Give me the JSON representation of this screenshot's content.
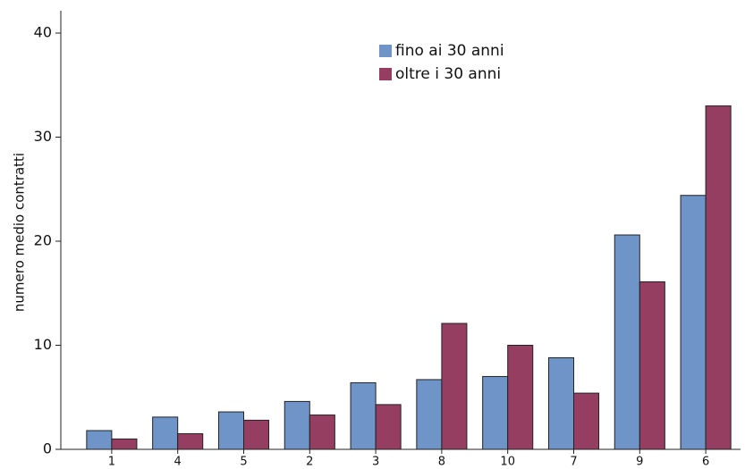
{
  "chart_data": {
    "type": "bar",
    "y_label": "numero medio contratti",
    "categories": [
      "1",
      "4",
      "5",
      "2",
      "3",
      "8",
      "10",
      "7",
      "9",
      "6"
    ],
    "series": [
      {
        "name": "fino ai 30 anni",
        "color": "#6f94c8",
        "values": [
          1.8,
          3.1,
          3.6,
          4.6,
          6.4,
          6.7,
          7.0,
          8.8,
          20.6,
          24.4
        ]
      },
      {
        "name": "oltre i 30 anni",
        "color": "#963d62",
        "values": [
          1.0,
          1.5,
          2.8,
          3.3,
          4.3,
          12.1,
          10.0,
          5.4,
          16.1,
          33.0
        ]
      }
    ],
    "ylim": [
      0,
      40
    ],
    "yticks": [
      0,
      10,
      20,
      30,
      40
    ],
    "grid": false
  }
}
